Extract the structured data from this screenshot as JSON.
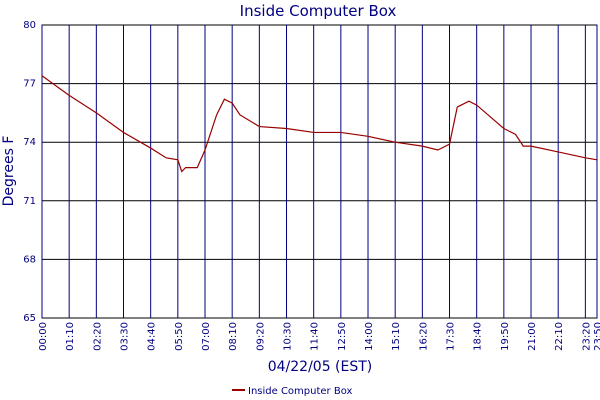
{
  "chart_data": {
    "type": "line",
    "title": "Inside Computer Box",
    "x_label": "04/22/05 (EST)",
    "y_label": "Degrees F",
    "x": [
      0,
      70,
      140,
      210,
      280,
      320,
      350,
      360,
      370,
      400,
      420,
      450,
      470,
      490,
      510,
      560,
      630,
      700,
      770,
      840,
      910,
      980,
      1020,
      1050,
      1070,
      1100,
      1120,
      1190,
      1220,
      1240,
      1260,
      1330,
      1400,
      1430
    ],
    "series": [
      {
        "name": "Inside Computer Box",
        "color": "#990000",
        "values": [
          77.4,
          76.4,
          75.5,
          74.5,
          73.7,
          73.2,
          73.1,
          72.5,
          72.7,
          72.7,
          73.6,
          75.4,
          76.2,
          76.0,
          75.4,
          74.8,
          74.7,
          74.5,
          74.5,
          74.3,
          74.0,
          73.8,
          73.6,
          73.9,
          75.8,
          76.1,
          75.9,
          74.7,
          74.4,
          73.8,
          73.8,
          73.5,
          73.2,
          73.1
        ]
      }
    ],
    "xlim": [
      0,
      1430
    ],
    "xticks": [
      {
        "value": 0,
        "label": "00:00"
      },
      {
        "value": 70,
        "label": "01:10"
      },
      {
        "value": 140,
        "label": "02:20"
      },
      {
        "value": 210,
        "label": "03:30"
      },
      {
        "value": 280,
        "label": "04:40"
      },
      {
        "value": 350,
        "label": "05:50"
      },
      {
        "value": 420,
        "label": "07:00"
      },
      {
        "value": 490,
        "label": "08:10"
      },
      {
        "value": 560,
        "label": "09:20"
      },
      {
        "value": 630,
        "label": "10:30"
      },
      {
        "value": 700,
        "label": "11:40"
      },
      {
        "value": 770,
        "label": "12:50"
      },
      {
        "value": 840,
        "label": "14:00"
      },
      {
        "value": 910,
        "label": "15:10"
      },
      {
        "value": 980,
        "label": "16:20"
      },
      {
        "value": 1050,
        "label": "17:30"
      },
      {
        "value": 1120,
        "label": "18:40"
      },
      {
        "value": 1190,
        "label": "19:50"
      },
      {
        "value": 1260,
        "label": "21:00"
      },
      {
        "value": 1330,
        "label": "22:10"
      },
      {
        "value": 1400,
        "label": "23:20"
      },
      {
        "value": 1430,
        "label": "23:50"
      }
    ],
    "ylim": [
      65,
      80
    ],
    "yticks": [
      65,
      68,
      71,
      74,
      77,
      80
    ],
    "grid": true,
    "legend": "bottom"
  }
}
